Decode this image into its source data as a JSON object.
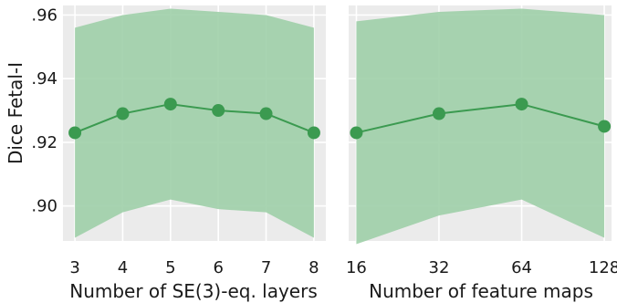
{
  "colors": {
    "panel_bg": "#ebebeb",
    "grid": "#ffffff",
    "band": "#9fcfa8",
    "line": "#3b9a50",
    "highlight_tick": "#d62728"
  },
  "chart_data": [
    {
      "type": "line",
      "xlabel": "Number of SE(3)-eq. layers",
      "ylabel": "Dice Fetal-I",
      "xscale": "linear",
      "xlim": [
        2.75,
        8.25
      ],
      "ylim": [
        0.889,
        0.963
      ],
      "x": [
        3,
        4,
        5,
        6,
        7,
        8
      ],
      "xtick_labels": [
        "3",
        "4",
        "5",
        "6",
        "7",
        "8"
      ],
      "highlight_x": 5,
      "yticks": [
        0.9,
        0.92,
        0.94,
        0.96
      ],
      "ytick_labels": [
        ".90",
        ".92",
        ".94",
        ".96"
      ],
      "grid": true,
      "series": [
        {
          "values": [
            0.923,
            0.929,
            0.932,
            0.93,
            0.929,
            0.923
          ],
          "lower": [
            0.89,
            0.898,
            0.902,
            0.899,
            0.898,
            0.89
          ],
          "upper": [
            0.956,
            0.96,
            0.962,
            0.961,
            0.96,
            0.956
          ]
        }
      ]
    },
    {
      "type": "line",
      "xlabel": "Number of feature maps",
      "ylabel": "",
      "xscale": "log2",
      "xlim": [
        15,
        136
      ],
      "ylim": [
        0.889,
        0.963
      ],
      "x": [
        16,
        32,
        64,
        128
      ],
      "xtick_labels": [
        "16",
        "32",
        "64",
        "128"
      ],
      "highlight_x": 64,
      "yticks": [
        0.9,
        0.92,
        0.94,
        0.96
      ],
      "ytick_labels": [],
      "grid": true,
      "series": [
        {
          "values": [
            0.923,
            0.929,
            0.932,
            0.925
          ],
          "lower": [
            0.888,
            0.897,
            0.902,
            0.89
          ],
          "upper": [
            0.958,
            0.961,
            0.962,
            0.96
          ]
        }
      ]
    }
  ]
}
